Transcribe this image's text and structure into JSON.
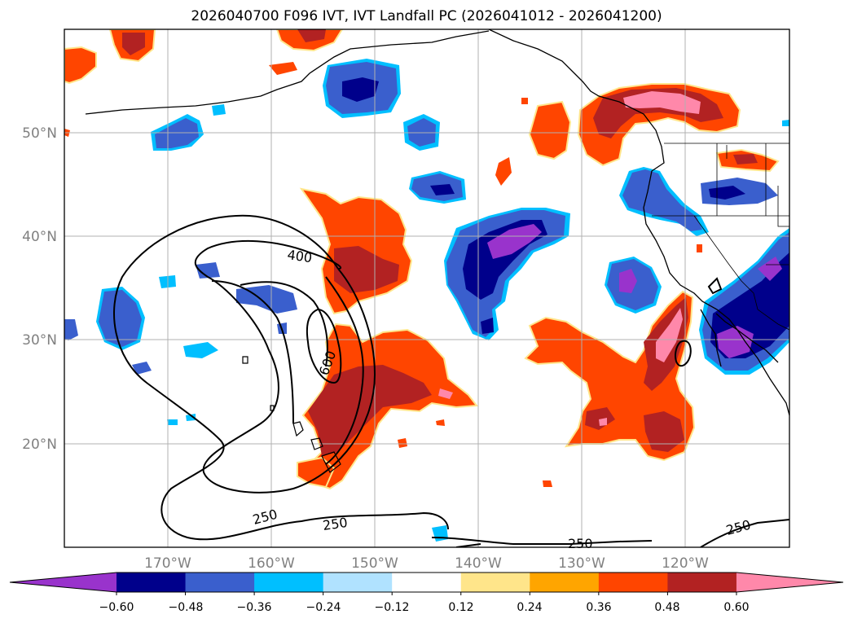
{
  "title": "2026040700 F096 IVT, IVT Landfall PC (2026041012 - 2026041200)",
  "map": {
    "lon_labels": [
      "170°W",
      "160°W",
      "150°W",
      "140°W",
      "130°W",
      "120°W"
    ],
    "lat_labels": [
      "50°N",
      "40°N",
      "30°N",
      "20°N"
    ],
    "contour_labels": [
      "400",
      "600",
      "250",
      "250",
      "250",
      "250"
    ]
  },
  "colorbar": {
    "tick_labels": [
      "−0.60",
      "−0.48",
      "−0.36",
      "−0.24",
      "−0.12",
      "0.12",
      "0.24",
      "0.36",
      "0.48",
      "0.60"
    ],
    "colors": [
      "#9933cc",
      "#00008b",
      "#3a5fcd",
      "#00bfff",
      "#b0e2ff",
      "#ffffff",
      "#ffe58a",
      "#ffa500",
      "#ff4500",
      "#b22222",
      "#ff88aa"
    ]
  },
  "colors": {
    "grid": "#b0b0b0",
    "coast": "#000000"
  }
}
